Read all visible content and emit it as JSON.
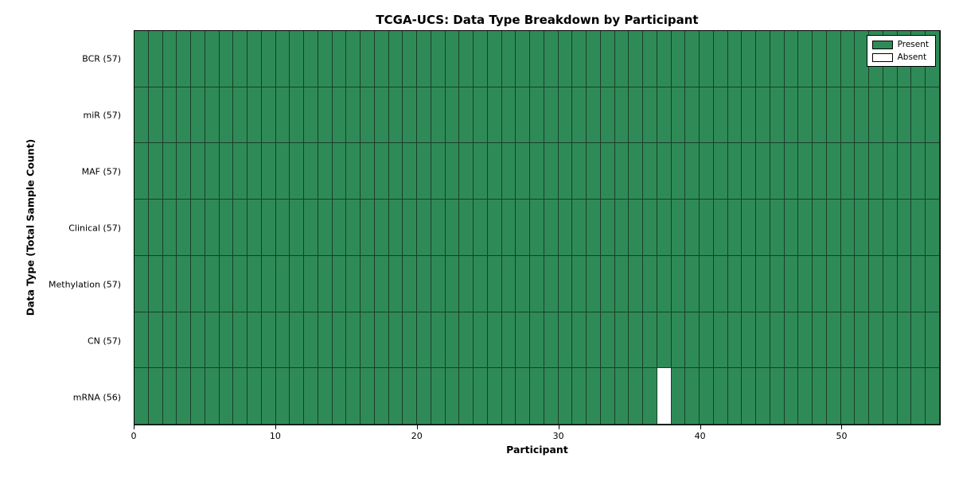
{
  "chart_data": {
    "type": "heatmap",
    "title": "TCGA-UCS: Data Type Breakdown by Participant",
    "xlabel": "Participant",
    "ylabel": "Data Type (Total Sample Count)",
    "n_participants": 57,
    "x_ticks": [
      0,
      10,
      20,
      30,
      40,
      50
    ],
    "xlim": [
      0,
      57
    ],
    "rows": [
      {
        "label": "BCR (57)",
        "data_type": "BCR",
        "present_count": 57,
        "absent_participants": []
      },
      {
        "label": "miR (57)",
        "data_type": "miR",
        "present_count": 57,
        "absent_participants": []
      },
      {
        "label": "MAF (57)",
        "data_type": "MAF",
        "present_count": 57,
        "absent_participants": []
      },
      {
        "label": "Clinical (57)",
        "data_type": "Clinical",
        "present_count": 57,
        "absent_participants": []
      },
      {
        "label": "Methylation (57)",
        "data_type": "Methylation",
        "present_count": 57,
        "absent_participants": []
      },
      {
        "label": "CN (57)",
        "data_type": "CN",
        "present_count": 57,
        "absent_participants": []
      },
      {
        "label": "mRNA (56)",
        "data_type": "mRNA",
        "present_count": 56,
        "absent_participants": [
          37
        ]
      }
    ],
    "legend": {
      "position": "upper right",
      "entries": [
        {
          "label": "Present",
          "color": "#2e8b57"
        },
        {
          "label": "Absent",
          "color": "#ffffff"
        }
      ]
    },
    "colors": {
      "present": "#2e8b57",
      "absent": "#ffffff",
      "gridline": "#1a3d29"
    },
    "grid": true
  }
}
